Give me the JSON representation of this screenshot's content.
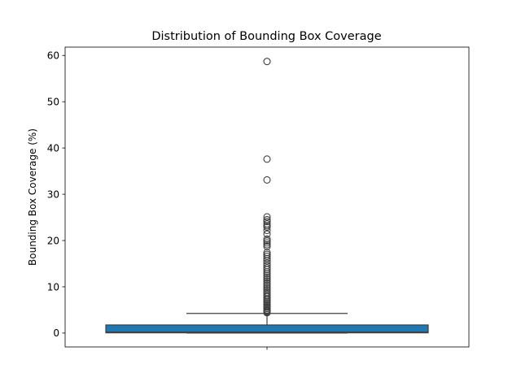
{
  "chart_data": {
    "type": "box",
    "title": "Distribution of Bounding Box Coverage",
    "xlabel": "",
    "ylabel": "Bounding Box Coverage (%)",
    "ylim": [
      -3,
      61.8
    ],
    "yticks": [
      0,
      10,
      20,
      30,
      40,
      50,
      60
    ],
    "grid": false,
    "box_color": "#1f77b4",
    "line_color": "#3f3f3f",
    "box": {
      "whisker_low": 0.0,
      "q1": 0.05,
      "median": 0.2,
      "q3": 1.75,
      "whisker_high": 4.25
    },
    "outliers": [
      58.7,
      37.6,
      33.1,
      25.1,
      24.5,
      24.1,
      23.6,
      23.2,
      22.9,
      22.2,
      21.4,
      20.3,
      19.9,
      19.5,
      19.1,
      18.7,
      17.4,
      17.0,
      16.6,
      16.1,
      15.6,
      15.1,
      14.6,
      14.1,
      13.7,
      13.2,
      12.8,
      12.4,
      12.0,
      11.6,
      11.2,
      10.8,
      10.4,
      10.0,
      9.6,
      9.2,
      8.8,
      8.5,
      8.1,
      7.8,
      7.4,
      7.1,
      6.8,
      6.5,
      6.2,
      5.9,
      5.6,
      5.3,
      5.0,
      4.8,
      4.6,
      4.4
    ]
  }
}
